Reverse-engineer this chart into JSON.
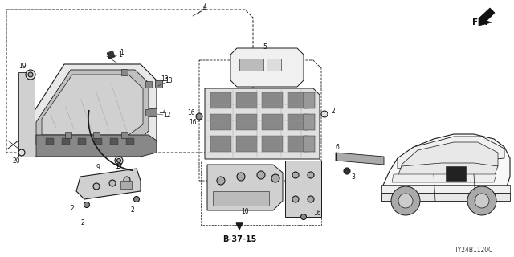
{
  "bg_color": "#ffffff",
  "line_color": "#1a1a1a",
  "watermark": "TY24B1120C",
  "fr_label": "FR.",
  "diagram_code": "B-37-15",
  "lw": 0.8
}
